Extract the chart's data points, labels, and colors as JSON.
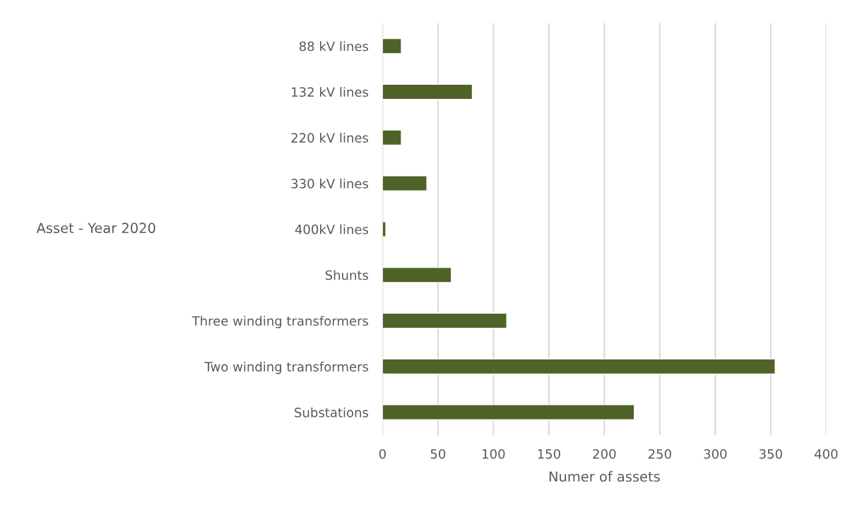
{
  "chart_data": {
    "type": "bar",
    "orientation": "horizontal",
    "categories": [
      "88 kV lines",
      "132 kV lines",
      "220 kV lines",
      "330 kV lines",
      "400kV lines",
      "Shunts",
      "Three winding transformers",
      "Two winding transformers",
      "Substations"
    ],
    "values": [
      17,
      81,
      17,
      40,
      3,
      62,
      112,
      354,
      227
    ],
    "color": "#4f6228",
    "xlabel": "Numer of assets",
    "ylabel": "Asset - Year 2020",
    "xlim": [
      0,
      400
    ],
    "xticks": [
      0,
      50,
      100,
      150,
      200,
      250,
      300,
      350,
      400
    ],
    "grid": "x",
    "legend": false
  }
}
